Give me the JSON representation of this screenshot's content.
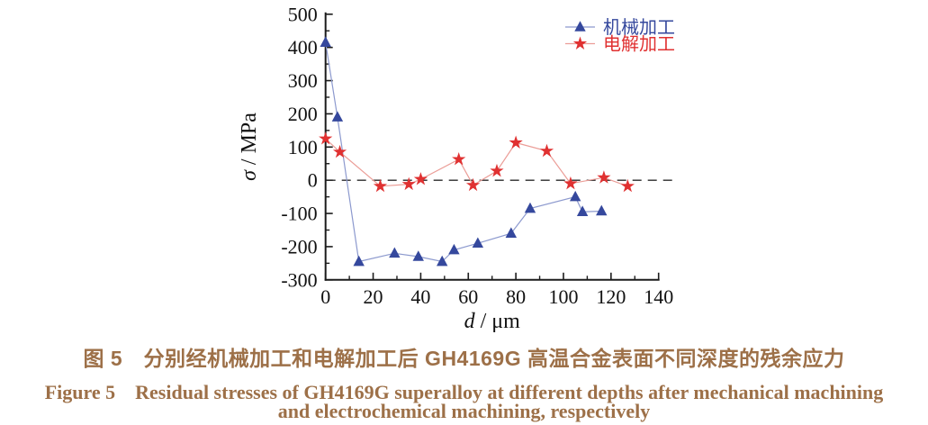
{
  "figure": {
    "caption_cn": "图 5　分别经机械加工和电解加工后 GH4169G 高温合金表面不同深度的残余应力",
    "caption_en_line1": "Figure 5　Residual stresses of GH4169G superalloy at different depths after mechanical machining",
    "caption_en_line2": "and electrochemical machining, respectively",
    "caption_color": "#9d7048"
  },
  "chart_data": {
    "type": "line",
    "title": "",
    "xlabel_italic": "d",
    "xlabel_rest": " / μm",
    "ylabel_italic": "σ",
    "ylabel_rest": " / MPa",
    "xlim": [
      0,
      140
    ],
    "ylim": [
      -300,
      500
    ],
    "x_major_ticks": [
      0,
      20,
      40,
      60,
      80,
      100,
      120,
      140
    ],
    "y_major_ticks": [
      -300,
      -200,
      -100,
      0,
      100,
      200,
      300,
      400,
      500
    ],
    "x_minor_step": 10,
    "y_minor_step": 50,
    "grid": false,
    "zero_line": "dashed",
    "legend_position": "top-right-inside",
    "axis_color": "#1c1c1c",
    "series": [
      {
        "name": "机械加工",
        "marker": "triangle",
        "marker_color": "#35489d",
        "line_color": "#8c99ce",
        "points": [
          [
            0,
            415
          ],
          [
            5,
            190
          ],
          [
            14,
            -245
          ],
          [
            29,
            -220
          ],
          [
            39,
            -230
          ],
          [
            49,
            -245
          ],
          [
            54,
            -210
          ],
          [
            64,
            -190
          ],
          [
            78,
            -160
          ],
          [
            86,
            -85
          ],
          [
            105,
            -50
          ],
          [
            108,
            -95
          ],
          [
            116,
            -93
          ]
        ]
      },
      {
        "name": "电解加工",
        "marker": "star",
        "marker_color": "#e03131",
        "line_color": "#eb9d97",
        "points": [
          [
            0,
            125
          ],
          [
            6,
            85
          ],
          [
            23,
            -18
          ],
          [
            35,
            -12
          ],
          [
            40,
            3
          ],
          [
            56,
            63
          ],
          [
            62,
            -15
          ],
          [
            72,
            28
          ],
          [
            80,
            113
          ],
          [
            93,
            88
          ],
          [
            103,
            -10
          ],
          [
            117,
            8
          ],
          [
            127,
            -18
          ]
        ]
      }
    ]
  }
}
